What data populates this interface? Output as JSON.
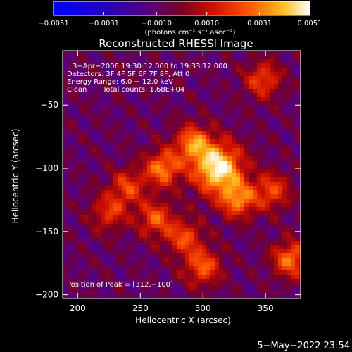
{
  "chart_data": {
    "type": "heatmap",
    "title": "Reconstructed RHESSI Image",
    "xlabel": "Heliocentric X (arcsec)",
    "ylabel": "Heliocentric Y (arcsec)",
    "xlim": [
      188,
      378
    ],
    "ylim": [
      -203,
      -7
    ],
    "x_ticks": [
      200,
      250,
      300,
      350
    ],
    "y_ticks": [
      -50,
      -100,
      -150,
      -200
    ],
    "x_tick_labels": [
      "200",
      "250",
      "300",
      "350"
    ],
    "y_tick_labels": [
      "−50",
      "−100",
      "−150",
      "−200"
    ],
    "colorbar": {
      "min": -0.0051,
      "max": 0.0051,
      "ticks": [
        -0.0051,
        -0.0031,
        -0.001,
        0.001,
        0.0031,
        0.0051
      ],
      "tick_labels": [
        "−0.0051",
        "−0.0031",
        "−0.0010",
        "0.0010",
        "0.0031",
        "0.0051"
      ],
      "unit_label": "(photons cm⁻² s⁻¹ asec⁻²)"
    },
    "peak": {
      "x": 312,
      "y": -100
    },
    "sources": [
      {
        "x": 312,
        "y": -100,
        "value": 0.0051
      },
      {
        "x": 268,
        "y": -100,
        "value": 0.0032
      },
      {
        "x": 292,
        "y": -80,
        "value": 0.003
      },
      {
        "x": 328,
        "y": -125,
        "value": 0.003
      },
      {
        "x": 262,
        "y": -140,
        "value": 0.0024
      },
      {
        "x": 355,
        "y": -118,
        "value": 0.0022
      },
      {
        "x": 370,
        "y": -172,
        "value": 0.003
      },
      {
        "x": 300,
        "y": -178,
        "value": 0.0026
      },
      {
        "x": 240,
        "y": -115,
        "value": 0.002
      },
      {
        "x": 348,
        "y": -30,
        "value": 0.0022
      },
      {
        "x": 225,
        "y": -135,
        "value": 0.0018
      },
      {
        "x": 285,
        "y": -155,
        "value": 0.0022
      }
    ],
    "annotations": {
      "time": "3−Apr−2006 19:30:12.000 to 19:33:12.000",
      "detectors": "Detectors: 3F 4F 5F 6F 7F 8F, Att 0",
      "energy": "Energy Range: 6.0 − 12.0 keV",
      "method": "Clean",
      "counts": "Total counts: 1.68E+04",
      "peak_text": "Position of Peak = [312,−100]"
    }
  },
  "footer": {
    "date": "5−May−2022 23:54"
  }
}
